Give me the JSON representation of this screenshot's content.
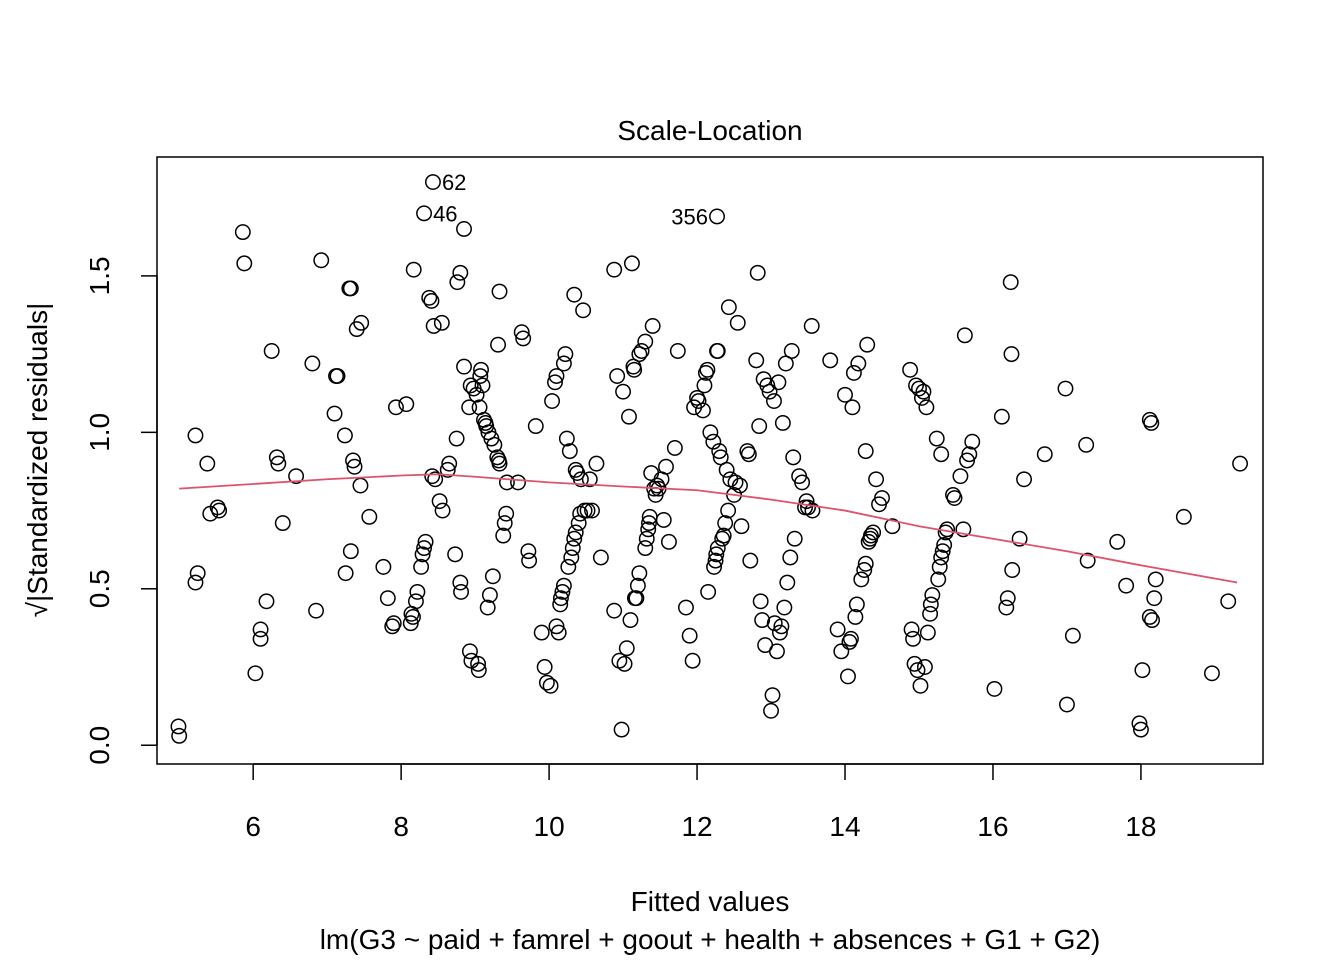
{
  "chart_data": {
    "type": "scatter",
    "title": "Scale-Location",
    "xlabel": "Fitted values",
    "sublabel": "lm(G3 ~ paid + famrel + goout + health + absences + G1 + G2)",
    "ylabel": "√|Standardized residuals|",
    "xlim": [
      4.7,
      19.65
    ],
    "ylim": [
      -0.06,
      1.88
    ],
    "xticks": [
      6,
      8,
      10,
      12,
      14,
      16,
      18
    ],
    "yticks": [
      0.0,
      0.5,
      1.0,
      1.5
    ],
    "xtick_labels": [
      "6",
      "8",
      "10",
      "12",
      "14",
      "16",
      "18"
    ],
    "ytick_labels": [
      "0.0",
      "0.5",
      "1.0",
      "1.5"
    ],
    "grid": false,
    "colors": {
      "points": "#000000",
      "smooth": "#DF536B"
    },
    "smooth_line": {
      "name": "",
      "x": [
        5.0,
        6.0,
        7.0,
        8.0,
        8.5,
        9.0,
        10.0,
        11.0,
        12.0,
        12.5,
        13.0,
        14.0,
        15.0,
        16.0,
        17.0,
        18.0,
        19.3
      ],
      "y": [
        0.82,
        0.835,
        0.85,
        0.862,
        0.866,
        0.858,
        0.84,
        0.827,
        0.815,
        0.8,
        0.785,
        0.75,
        0.7,
        0.66,
        0.62,
        0.575,
        0.52
      ]
    },
    "annotations": [
      {
        "label": "62",
        "x": 8.43,
        "y": 1.8,
        "anchor": "right"
      },
      {
        "label": "46",
        "x": 8.31,
        "y": 1.7,
        "anchor": "right"
      },
      {
        "label": "356",
        "x": 12.27,
        "y": 1.69,
        "anchor": "left"
      }
    ],
    "points": [
      [
        4.99,
        0.06
      ],
      [
        5.0,
        0.03
      ],
      [
        5.22,
        0.99
      ],
      [
        5.25,
        0.55
      ],
      [
        5.22,
        0.52
      ],
      [
        5.38,
        0.9
      ],
      [
        5.42,
        0.74
      ],
      [
        5.52,
        0.76
      ],
      [
        5.54,
        0.75
      ],
      [
        5.86,
        1.64
      ],
      [
        5.88,
        1.54
      ],
      [
        6.03,
        0.23
      ],
      [
        6.1,
        0.34
      ],
      [
        6.1,
        0.37
      ],
      [
        6.18,
        0.46
      ],
      [
        6.25,
        1.26
      ],
      [
        6.32,
        0.92
      ],
      [
        6.34,
        0.9
      ],
      [
        6.4,
        0.71
      ],
      [
        6.58,
        0.86
      ],
      [
        6.8,
        1.22
      ],
      [
        6.85,
        0.43
      ],
      [
        6.92,
        1.55
      ],
      [
        7.1,
        1.06
      ],
      [
        7.12,
        1.18
      ],
      [
        7.14,
        1.18
      ],
      [
        7.24,
        0.99
      ],
      [
        7.25,
        0.55
      ],
      [
        7.3,
        1.46
      ],
      [
        7.32,
        1.46
      ],
      [
        7.32,
        0.62
      ],
      [
        7.35,
        0.91
      ],
      [
        7.37,
        0.89
      ],
      [
        7.4,
        1.33
      ],
      [
        7.45,
        0.83
      ],
      [
        7.46,
        1.35
      ],
      [
        7.57,
        0.73
      ],
      [
        7.76,
        0.57
      ],
      [
        7.82,
        0.47
      ],
      [
        7.88,
        0.38
      ],
      [
        7.9,
        0.39
      ],
      [
        7.93,
        1.08
      ],
      [
        8.07,
        1.09
      ],
      [
        8.13,
        0.39
      ],
      [
        8.14,
        0.42
      ],
      [
        8.16,
        0.41
      ],
      [
        8.17,
        1.52
      ],
      [
        8.2,
        0.46
      ],
      [
        8.22,
        0.49
      ],
      [
        8.27,
        0.57
      ],
      [
        8.29,
        0.61
      ],
      [
        8.31,
        0.63
      ],
      [
        8.33,
        0.65
      ],
      [
        8.38,
        1.43
      ],
      [
        8.41,
        1.42
      ],
      [
        8.42,
        0.86
      ],
      [
        8.44,
        1.34
      ],
      [
        8.46,
        0.85
      ],
      [
        8.43,
        1.8
      ],
      [
        8.31,
        1.7
      ],
      [
        8.52,
        0.78
      ],
      [
        8.55,
        1.35
      ],
      [
        8.56,
        0.75
      ],
      [
        8.63,
        0.88
      ],
      [
        8.65,
        0.9
      ],
      [
        8.73,
        0.61
      ],
      [
        8.75,
        0.98
      ],
      [
        8.76,
        1.48
      ],
      [
        8.8,
        1.51
      ],
      [
        8.8,
        0.52
      ],
      [
        8.81,
        0.49
      ],
      [
        8.85,
        1.65
      ],
      [
        8.85,
        1.21
      ],
      [
        8.92,
        1.08
      ],
      [
        8.93,
        0.3
      ],
      [
        8.94,
        1.15
      ],
      [
        8.95,
        0.27
      ],
      [
        8.98,
        1.14
      ],
      [
        9.02,
        1.12
      ],
      [
        9.04,
        0.26
      ],
      [
        9.05,
        0.24
      ],
      [
        9.06,
        1.08
      ],
      [
        9.07,
        1.18
      ],
      [
        9.08,
        1.2
      ],
      [
        9.1,
        1.15
      ],
      [
        9.12,
        1.04
      ],
      [
        9.14,
        1.03
      ],
      [
        9.15,
        1.02
      ],
      [
        9.17,
        0.44
      ],
      [
        9.2,
        0.48
      ],
      [
        9.18,
        1.0
      ],
      [
        9.22,
        0.98
      ],
      [
        9.24,
        0.54
      ],
      [
        9.26,
        0.96
      ],
      [
        9.3,
        0.92
      ],
      [
        9.32,
        0.91
      ],
      [
        9.33,
        0.9
      ],
      [
        9.31,
        1.28
      ],
      [
        9.33,
        1.45
      ],
      [
        9.38,
        0.67
      ],
      [
        9.4,
        0.71
      ],
      [
        9.42,
        0.74
      ],
      [
        9.43,
        0.84
      ],
      [
        9.58,
        0.84
      ],
      [
        9.63,
        1.32
      ],
      [
        9.65,
        1.3
      ],
      [
        9.72,
        0.62
      ],
      [
        9.73,
        0.59
      ],
      [
        9.82,
        1.02
      ],
      [
        9.9,
        0.36
      ],
      [
        9.94,
        0.25
      ],
      [
        9.97,
        0.2
      ],
      [
        10.02,
        0.19
      ],
      [
        10.04,
        1.1
      ],
      [
        10.08,
        1.16
      ],
      [
        10.1,
        1.18
      ],
      [
        10.1,
        0.38
      ],
      [
        10.13,
        0.36
      ],
      [
        10.15,
        0.45
      ],
      [
        10.16,
        0.47
      ],
      [
        10.18,
        0.49
      ],
      [
        10.2,
        0.51
      ],
      [
        10.2,
        1.22
      ],
      [
        10.22,
        1.25
      ],
      [
        10.24,
        0.98
      ],
      [
        10.26,
        0.57
      ],
      [
        10.28,
        0.94
      ],
      [
        10.3,
        0.6
      ],
      [
        10.32,
        0.63
      ],
      [
        10.34,
        1.44
      ],
      [
        10.34,
        0.66
      ],
      [
        10.36,
        0.68
      ],
      [
        10.36,
        0.88
      ],
      [
        10.38,
        0.87
      ],
      [
        10.4,
        0.71
      ],
      [
        10.42,
        0.74
      ],
      [
        10.43,
        0.85
      ],
      [
        10.46,
        1.39
      ],
      [
        10.48,
        0.75
      ],
      [
        10.52,
        0.75
      ],
      [
        10.55,
        0.85
      ],
      [
        10.58,
        0.75
      ],
      [
        10.64,
        0.9
      ],
      [
        10.7,
        0.6
      ],
      [
        10.88,
        1.52
      ],
      [
        10.88,
        0.43
      ],
      [
        10.92,
        1.18
      ],
      [
        10.95,
        0.27
      ],
      [
        10.98,
        0.05
      ],
      [
        11.0,
        1.13
      ],
      [
        11.02,
        0.26
      ],
      [
        11.05,
        0.31
      ],
      [
        11.08,
        1.05
      ],
      [
        11.1,
        0.4
      ],
      [
        11.12,
        1.54
      ],
      [
        11.14,
        1.21
      ],
      [
        11.15,
        1.2
      ],
      [
        11.16,
        0.47
      ],
      [
        11.18,
        0.47
      ],
      [
        11.2,
        0.51
      ],
      [
        11.22,
        0.55
      ],
      [
        11.22,
        1.25
      ],
      [
        11.25,
        1.26
      ],
      [
        11.3,
        1.29
      ],
      [
        11.3,
        0.63
      ],
      [
        11.32,
        0.66
      ],
      [
        11.34,
        0.69
      ],
      [
        11.35,
        0.71
      ],
      [
        11.36,
        0.73
      ],
      [
        11.38,
        0.87
      ],
      [
        11.4,
        1.34
      ],
      [
        11.42,
        0.82
      ],
      [
        11.44,
        0.8
      ],
      [
        11.46,
        0.83
      ],
      [
        11.48,
        0.82
      ],
      [
        11.52,
        0.85
      ],
      [
        11.55,
        0.72
      ],
      [
        11.58,
        0.89
      ],
      [
        11.62,
        0.65
      ],
      [
        11.7,
        0.95
      ],
      [
        11.74,
        1.26
      ],
      [
        11.85,
        0.44
      ],
      [
        11.9,
        0.35
      ],
      [
        11.94,
        0.27
      ],
      [
        11.96,
        1.08
      ],
      [
        12.0,
        1.11
      ],
      [
        12.02,
        1.1
      ],
      [
        12.08,
        1.07
      ],
      [
        12.1,
        1.15
      ],
      [
        12.12,
        1.19
      ],
      [
        12.14,
        1.2
      ],
      [
        12.15,
        0.49
      ],
      [
        12.18,
        1.0
      ],
      [
        12.22,
        0.97
      ],
      [
        12.23,
        0.57
      ],
      [
        12.25,
        0.59
      ],
      [
        12.26,
        0.61
      ],
      [
        12.27,
        1.26
      ],
      [
        12.28,
        1.26
      ],
      [
        12.28,
        0.63
      ],
      [
        12.3,
        0.94
      ],
      [
        12.32,
        0.92
      ],
      [
        12.34,
        0.66
      ],
      [
        12.36,
        0.67
      ],
      [
        12.38,
        0.71
      ],
      [
        12.4,
        0.88
      ],
      [
        12.42,
        0.75
      ],
      [
        12.43,
        1.4
      ],
      [
        12.45,
        0.85
      ],
      [
        12.5,
        0.8
      ],
      [
        12.52,
        0.84
      ],
      [
        12.55,
        1.35
      ],
      [
        12.58,
        0.83
      ],
      [
        12.6,
        0.7
      ],
      [
        12.68,
        0.94
      ],
      [
        12.7,
        0.93
      ],
      [
        12.72,
        0.59
      ],
      [
        12.27,
        1.69
      ],
      [
        12.8,
        1.23
      ],
      [
        12.82,
        1.51
      ],
      [
        12.84,
        1.02
      ],
      [
        12.86,
        0.46
      ],
      [
        12.88,
        0.4
      ],
      [
        12.9,
        1.17
      ],
      [
        12.92,
        0.32
      ],
      [
        12.95,
        1.15
      ],
      [
        12.98,
        1.13
      ],
      [
        13.0,
        0.11
      ],
      [
        13.02,
        0.16
      ],
      [
        13.04,
        1.1
      ],
      [
        13.05,
        0.39
      ],
      [
        13.08,
        0.3
      ],
      [
        13.1,
        1.16
      ],
      [
        13.12,
        0.36
      ],
      [
        13.14,
        0.38
      ],
      [
        13.16,
        1.03
      ],
      [
        13.18,
        0.44
      ],
      [
        13.2,
        1.22
      ],
      [
        13.22,
        0.52
      ],
      [
        13.26,
        0.6
      ],
      [
        13.28,
        1.26
      ],
      [
        13.3,
        0.92
      ],
      [
        13.32,
        0.66
      ],
      [
        13.38,
        0.86
      ],
      [
        13.42,
        0.84
      ],
      [
        13.46,
        0.76
      ],
      [
        13.48,
        0.78
      ],
      [
        13.5,
        0.76
      ],
      [
        13.56,
        0.75
      ],
      [
        13.55,
        1.34
      ],
      [
        13.8,
        1.23
      ],
      [
        13.9,
        0.37
      ],
      [
        13.95,
        0.3
      ],
      [
        14.0,
        1.12
      ],
      [
        14.04,
        0.22
      ],
      [
        14.06,
        0.33
      ],
      [
        14.08,
        0.34
      ],
      [
        14.1,
        1.08
      ],
      [
        14.12,
        1.19
      ],
      [
        14.14,
        0.41
      ],
      [
        14.16,
        0.45
      ],
      [
        14.18,
        1.22
      ],
      [
        14.22,
        0.53
      ],
      [
        14.26,
        0.56
      ],
      [
        14.28,
        0.58
      ],
      [
        14.28,
        0.94
      ],
      [
        14.3,
        1.28
      ],
      [
        14.32,
        0.65
      ],
      [
        14.34,
        0.66
      ],
      [
        14.35,
        0.67
      ],
      [
        14.38,
        0.68
      ],
      [
        14.42,
        0.85
      ],
      [
        14.46,
        0.77
      ],
      [
        14.5,
        0.79
      ],
      [
        14.64,
        0.7
      ],
      [
        14.88,
        1.2
      ],
      [
        14.9,
        0.37
      ],
      [
        14.92,
        0.34
      ],
      [
        14.94,
        0.26
      ],
      [
        14.96,
        1.15
      ],
      [
        14.98,
        0.24
      ],
      [
        15.0,
        1.14
      ],
      [
        15.02,
        0.19
      ],
      [
        15.04,
        1.11
      ],
      [
        15.06,
        1.13
      ],
      [
        15.08,
        0.25
      ],
      [
        15.1,
        1.08
      ],
      [
        15.12,
        0.36
      ],
      [
        15.15,
        0.42
      ],
      [
        15.16,
        0.45
      ],
      [
        15.18,
        0.48
      ],
      [
        15.24,
        0.98
      ],
      [
        15.26,
        0.53
      ],
      [
        15.28,
        0.57
      ],
      [
        15.3,
        0.6
      ],
      [
        15.3,
        0.93
      ],
      [
        15.32,
        0.62
      ],
      [
        15.34,
        0.64
      ],
      [
        15.36,
        0.68
      ],
      [
        15.38,
        0.69
      ],
      [
        15.46,
        0.8
      ],
      [
        15.48,
        0.79
      ],
      [
        15.56,
        0.86
      ],
      [
        15.6,
        0.69
      ],
      [
        15.62,
        1.31
      ],
      [
        15.65,
        0.91
      ],
      [
        15.68,
        0.93
      ],
      [
        15.72,
        0.97
      ],
      [
        16.02,
        0.18
      ],
      [
        16.12,
        1.05
      ],
      [
        16.18,
        0.44
      ],
      [
        16.2,
        0.47
      ],
      [
        16.24,
        1.48
      ],
      [
        16.25,
        1.25
      ],
      [
        16.26,
        0.56
      ],
      [
        16.36,
        0.66
      ],
      [
        16.42,
        0.85
      ],
      [
        16.7,
        0.93
      ],
      [
        16.98,
        1.14
      ],
      [
        17.0,
        0.13
      ],
      [
        17.08,
        0.35
      ],
      [
        17.26,
        0.96
      ],
      [
        17.28,
        0.59
      ],
      [
        17.68,
        0.65
      ],
      [
        17.8,
        0.51
      ],
      [
        17.98,
        0.07
      ],
      [
        18.0,
        0.05
      ],
      [
        18.02,
        0.24
      ],
      [
        18.12,
        1.04
      ],
      [
        18.14,
        1.03
      ],
      [
        18.12,
        0.41
      ],
      [
        18.15,
        0.4
      ],
      [
        18.18,
        0.47
      ],
      [
        18.2,
        0.53
      ],
      [
        18.58,
        0.73
      ],
      [
        18.96,
        0.23
      ],
      [
        19.18,
        0.46
      ],
      [
        19.34,
        0.9
      ]
    ]
  }
}
